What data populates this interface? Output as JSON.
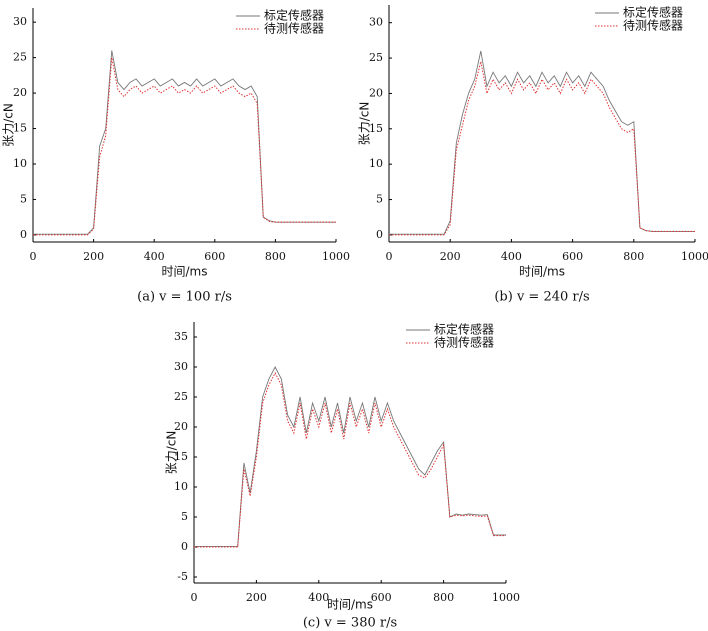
{
  "chart_data": [
    {
      "type": "line",
      "caption": "(a) v = 100 r/s",
      "xlabel": "时间/ms",
      "ylabel": "张力/cN",
      "legend": "upper right",
      "x": [
        0,
        20,
        40,
        60,
        80,
        100,
        120,
        140,
        160,
        180,
        200,
        220,
        240,
        260,
        280,
        300,
        320,
        340,
        360,
        380,
        400,
        420,
        440,
        460,
        480,
        500,
        520,
        540,
        560,
        580,
        600,
        620,
        640,
        660,
        680,
        700,
        720,
        740,
        760,
        780,
        800,
        820,
        840,
        860,
        880,
        900,
        920,
        940,
        960,
        980,
        1000
      ],
      "xlim": [
        0,
        1000
      ],
      "xticks": [
        0,
        200,
        400,
        600,
        800,
        1000
      ],
      "ylim": [
        -1,
        32
      ],
      "yticks": [
        0,
        5,
        10,
        15,
        20,
        25,
        30
      ],
      "series": [
        {
          "name": "标定传感器",
          "color": "#777777",
          "line_style": "solid",
          "values": [
            0.1,
            0.1,
            0.1,
            0.1,
            0.1,
            0.1,
            0.1,
            0.1,
            0.1,
            0.1,
            1,
            12.5,
            15,
            26,
            21.5,
            20.5,
            21.5,
            22,
            21,
            21.5,
            22,
            21,
            21.5,
            22,
            21,
            21.5,
            21,
            22,
            21,
            21.5,
            22,
            21,
            21.5,
            22,
            21,
            20.5,
            21,
            19.5,
            2.5,
            2,
            1.8,
            1.8,
            1.8,
            1.8,
            1.8,
            1.8,
            1.8,
            1.8,
            1.8,
            1.8,
            1.8
          ]
        },
        {
          "name": "待测传感器",
          "color": "#e03030",
          "line_style": "dotted",
          "values": [
            0,
            0,
            0,
            0,
            0,
            0,
            0,
            0,
            0,
            0,
            0.8,
            11,
            14,
            25,
            20.5,
            19.5,
            20.5,
            21,
            20,
            20.5,
            21,
            20,
            20.5,
            21,
            20,
            20.5,
            20,
            21,
            20,
            20.5,
            21,
            20,
            20.5,
            21,
            20,
            19.5,
            20,
            18.5,
            2.5,
            1.9,
            1.8,
            1.8,
            1.8,
            1.8,
            1.8,
            1.8,
            1.8,
            1.8,
            1.8,
            1.8,
            1.8
          ]
        }
      ]
    },
    {
      "type": "line",
      "caption": "(b) v = 240 r/s",
      "xlabel": "时间/ms",
      "ylabel": "张力/cN",
      "legend": "upper right",
      "x": [
        0,
        20,
        40,
        60,
        80,
        100,
        120,
        140,
        160,
        180,
        200,
        220,
        240,
        260,
        280,
        300,
        320,
        340,
        360,
        380,
        400,
        420,
        440,
        460,
        480,
        500,
        520,
        540,
        560,
        580,
        600,
        620,
        640,
        660,
        680,
        700,
        720,
        740,
        760,
        780,
        800,
        820,
        840,
        860,
        880,
        900,
        920,
        940,
        960,
        980,
        1000
      ],
      "xlim": [
        0,
        1000
      ],
      "xticks": [
        0,
        200,
        400,
        600,
        800,
        1000
      ],
      "ylim": [
        -1,
        32.5
      ],
      "yticks": [
        0,
        5,
        10,
        15,
        20,
        25,
        30
      ],
      "series": [
        {
          "name": "标定传感器",
          "color": "#777777",
          "line_style": "solid",
          "values": [
            0.1,
            0.1,
            0.1,
            0.1,
            0.1,
            0.1,
            0.1,
            0.1,
            0.1,
            0.1,
            2,
            13,
            17,
            20,
            22,
            26,
            21,
            23,
            21.5,
            22.5,
            21,
            23,
            21.5,
            22.5,
            21,
            23,
            21.5,
            22.5,
            21,
            23,
            21.5,
            22.5,
            21,
            23,
            22,
            21,
            19,
            17.5,
            16,
            15.5,
            16,
            1,
            0.6,
            0.5,
            0.5,
            0.5,
            0.5,
            0.5,
            0.5,
            0.5,
            0.5
          ]
        },
        {
          "name": "待测传感器",
          "color": "#e03030",
          "line_style": "dotted",
          "values": [
            0,
            0,
            0,
            0,
            0,
            0,
            0,
            0,
            0,
            0,
            1.5,
            12,
            15.5,
            19,
            21,
            24.5,
            20,
            22,
            20.5,
            21.5,
            20,
            22,
            20.5,
            21.5,
            20,
            22,
            20.5,
            21.5,
            20,
            22,
            20.5,
            21.5,
            20,
            22,
            21,
            20,
            18,
            16.5,
            15,
            14.5,
            15,
            1,
            0.6,
            0.5,
            0.5,
            0.5,
            0.5,
            0.5,
            0.5,
            0.5,
            0.5
          ]
        }
      ]
    },
    {
      "type": "line",
      "caption": "(c) v = 380 r/s",
      "xlabel": "时间/ms",
      "ylabel": "张力/cN",
      "legend": "upper right",
      "x": [
        0,
        20,
        40,
        60,
        80,
        100,
        120,
        140,
        160,
        180,
        200,
        220,
        240,
        260,
        280,
        300,
        320,
        340,
        360,
        380,
        400,
        420,
        440,
        460,
        480,
        500,
        520,
        540,
        560,
        580,
        600,
        620,
        640,
        660,
        680,
        700,
        720,
        740,
        760,
        780,
        800,
        820,
        840,
        860,
        880,
        900,
        920,
        940,
        960,
        980,
        1000
      ],
      "xlim": [
        0,
        1000
      ],
      "xticks": [
        0,
        200,
        400,
        600,
        800,
        1000
      ],
      "ylim": [
        -6,
        37.5
      ],
      "yticks": [
        -5,
        0,
        5,
        10,
        15,
        20,
        25,
        30,
        35
      ],
      "series": [
        {
          "name": "标定传感器",
          "color": "#777777",
          "line_style": "solid",
          "values": [
            0.1,
            0.1,
            0.1,
            0.1,
            0.1,
            0.1,
            0.1,
            0.1,
            14,
            9,
            16,
            25,
            28,
            30,
            28,
            22,
            20,
            25,
            19,
            24,
            21,
            25,
            20,
            24,
            19,
            25,
            21,
            24,
            20,
            25,
            21,
            24,
            21,
            19,
            17,
            15,
            13,
            12,
            14,
            16,
            17.5,
            5,
            5.5,
            5.3,
            5.5,
            5.4,
            5.3,
            5.4,
            2,
            2,
            2
          ]
        },
        {
          "name": "待测传感器",
          "color": "#e03030",
          "line_style": "dotted",
          "values": [
            0,
            0,
            0,
            0,
            0,
            0,
            0,
            0,
            13,
            8.5,
            15,
            24,
            27,
            29,
            27,
            21,
            19,
            24,
            18,
            23,
            20,
            24,
            19,
            23,
            18,
            24,
            20,
            23,
            19,
            24,
            20,
            23,
            20,
            18,
            16,
            14,
            12,
            11.5,
            13,
            15,
            17,
            5,
            5.3,
            5.2,
            5.3,
            5.2,
            5.1,
            5.2,
            1.9,
            1.9,
            1.9
          ]
        }
      ]
    }
  ]
}
